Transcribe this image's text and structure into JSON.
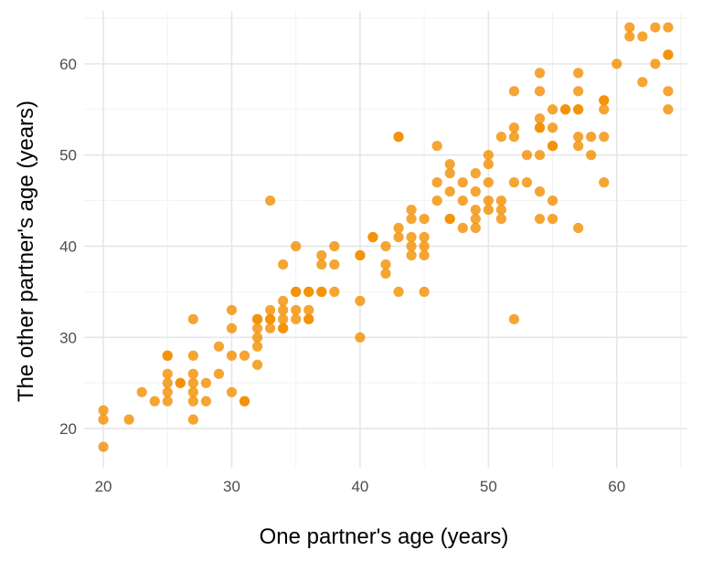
{
  "chart_data": {
    "type": "scatter",
    "title": "",
    "xlabel": "One partner's age (years)",
    "ylabel": "The other partner's age (years)",
    "xlim": [
      18.5,
      65.5
    ],
    "ylim": [
      15.7,
      65.8
    ],
    "x_ticks": [
      "20",
      "30",
      "40",
      "50",
      "60"
    ],
    "y_ticks": [
      "20",
      "30",
      "40",
      "50",
      "60"
    ],
    "grid": true,
    "point_color": "#F28E00",
    "point_opacity": 0.8,
    "series": [
      {
        "points": [
          [
            20,
            22
          ],
          [
            20,
            21
          ],
          [
            20,
            18
          ],
          [
            22,
            21
          ],
          [
            23,
            24
          ],
          [
            24,
            23
          ],
          [
            25,
            28
          ],
          [
            25,
            28
          ],
          [
            25,
            26
          ],
          [
            25,
            25
          ],
          [
            25,
            24
          ],
          [
            25,
            23
          ],
          [
            26,
            25
          ],
          [
            26,
            25
          ],
          [
            27,
            32
          ],
          [
            27,
            28
          ],
          [
            27,
            26
          ],
          [
            27,
            25
          ],
          [
            27,
            24
          ],
          [
            27,
            23
          ],
          [
            27,
            21
          ],
          [
            28,
            25
          ],
          [
            28,
            23
          ],
          [
            29,
            29
          ],
          [
            29,
            26
          ],
          [
            30,
            33
          ],
          [
            30,
            31
          ],
          [
            30,
            28
          ],
          [
            30,
            24
          ],
          [
            31,
            28
          ],
          [
            31,
            23
          ],
          [
            31,
            23
          ],
          [
            32,
            32
          ],
          [
            32,
            32
          ],
          [
            32,
            31
          ],
          [
            32,
            30
          ],
          [
            32,
            29
          ],
          [
            32,
            27
          ],
          [
            33,
            45
          ],
          [
            33,
            33
          ],
          [
            33,
            32
          ],
          [
            33,
            32
          ],
          [
            33,
            31
          ],
          [
            34,
            38
          ],
          [
            34,
            34
          ],
          [
            34,
            33
          ],
          [
            34,
            32
          ],
          [
            34,
            31
          ],
          [
            34,
            31
          ],
          [
            35,
            40
          ],
          [
            35,
            35
          ],
          [
            35,
            35
          ],
          [
            35,
            33
          ],
          [
            35,
            32
          ],
          [
            36,
            35
          ],
          [
            36,
            35
          ],
          [
            36,
            33
          ],
          [
            36,
            32
          ],
          [
            36,
            32
          ],
          [
            37,
            39
          ],
          [
            37,
            38
          ],
          [
            37,
            35
          ],
          [
            37,
            35
          ],
          [
            38,
            40
          ],
          [
            38,
            38
          ],
          [
            38,
            35
          ],
          [
            40,
            39
          ],
          [
            40,
            39
          ],
          [
            40,
            34
          ],
          [
            40,
            30
          ],
          [
            41,
            41
          ],
          [
            41,
            41
          ],
          [
            42,
            40
          ],
          [
            42,
            38
          ],
          [
            42,
            37
          ],
          [
            43,
            52
          ],
          [
            43,
            52
          ],
          [
            43,
            42
          ],
          [
            43,
            41
          ],
          [
            43,
            35
          ],
          [
            44,
            44
          ],
          [
            44,
            43
          ],
          [
            44,
            41
          ],
          [
            44,
            40
          ],
          [
            44,
            39
          ],
          [
            45,
            43
          ],
          [
            45,
            41
          ],
          [
            45,
            40
          ],
          [
            45,
            39
          ],
          [
            45,
            35
          ],
          [
            46,
            51
          ],
          [
            46,
            47
          ],
          [
            46,
            45
          ],
          [
            47,
            49
          ],
          [
            47,
            48
          ],
          [
            47,
            46
          ],
          [
            47,
            43
          ],
          [
            47,
            43
          ],
          [
            48,
            47
          ],
          [
            48,
            45
          ],
          [
            48,
            42
          ],
          [
            49,
            48
          ],
          [
            49,
            46
          ],
          [
            49,
            44
          ],
          [
            49,
            43
          ],
          [
            49,
            42
          ],
          [
            50,
            50
          ],
          [
            50,
            49
          ],
          [
            50,
            47
          ],
          [
            50,
            45
          ],
          [
            50,
            44
          ],
          [
            51,
            52
          ],
          [
            51,
            45
          ],
          [
            51,
            44
          ],
          [
            51,
            43
          ],
          [
            52,
            57
          ],
          [
            52,
            53
          ],
          [
            52,
            52
          ],
          [
            52,
            47
          ],
          [
            52,
            32
          ],
          [
            53,
            50
          ],
          [
            53,
            47
          ],
          [
            54,
            59
          ],
          [
            54,
            57
          ],
          [
            54,
            54
          ],
          [
            54,
            53
          ],
          [
            54,
            53
          ],
          [
            54,
            50
          ],
          [
            54,
            46
          ],
          [
            54,
            43
          ],
          [
            55,
            55
          ],
          [
            55,
            53
          ],
          [
            55,
            51
          ],
          [
            55,
            51
          ],
          [
            55,
            45
          ],
          [
            55,
            43
          ],
          [
            56,
            55
          ],
          [
            56,
            55
          ],
          [
            57,
            59
          ],
          [
            57,
            57
          ],
          [
            57,
            55
          ],
          [
            57,
            55
          ],
          [
            57,
            52
          ],
          [
            57,
            51
          ],
          [
            57,
            42
          ],
          [
            58,
            52
          ],
          [
            58,
            50
          ],
          [
            59,
            56
          ],
          [
            59,
            56
          ],
          [
            59,
            55
          ],
          [
            59,
            52
          ],
          [
            59,
            47
          ],
          [
            60,
            60
          ],
          [
            61,
            64
          ],
          [
            61,
            63
          ],
          [
            62,
            63
          ],
          [
            62,
            58
          ],
          [
            63,
            64
          ],
          [
            63,
            60
          ],
          [
            64,
            64
          ],
          [
            64,
            61
          ],
          [
            64,
            61
          ],
          [
            64,
            57
          ],
          [
            64,
            55
          ]
        ]
      }
    ]
  }
}
